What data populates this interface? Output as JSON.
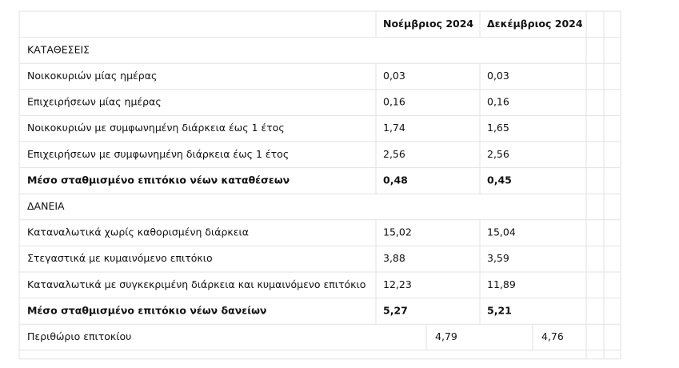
{
  "table": {
    "header": [
      "Νοέμβριος 2024",
      "Δεκέμβριος 2024"
    ],
    "sections": [
      {
        "title": "ΚΑΤΑΘΕΣΕΙΣ",
        "rows": [
          [
            "Νοικοκυριών μίας ημέρας",
            "0,03",
            "0,03"
          ],
          [
            "Επιχειρήσεων μίας ημέρας",
            "0,16",
            "0,16"
          ],
          [
            "Νοικοκυριών με συμφωνημένη διάρκεια έως 1 έτος",
            "1,74",
            "1,65"
          ],
          [
            "Επιχειρήσεων με συμφωνημένη διάρκεια έως 1 έτος",
            "2,56",
            "2,56"
          ]
        ],
        "average": [
          "Μέσο σταθμισμένο επιτόκιο νέων καταθέσεων",
          "0,48",
          "0,45"
        ]
      },
      {
        "title": "ΔΑΝΕΙΑ",
        "rows": [
          [
            "Καταναλωτικά χωρίς καθορισμένη διάρκεια",
            "15,02",
            "15,04"
          ],
          [
            "Στεγαστικά με κυμαινόμενο επιτόκιο",
            "3,88",
            "3,59"
          ],
          [
            "Καταναλωτικά με συγκεκριμένη διάρκεια και κυμαινόμενο επιτόκιο",
            "12,23",
            "11,89"
          ]
        ],
        "average": [
          "Μέσο σταθμισμένο επιτόκιο νέων δανείων",
          "5,27",
          "5,21"
        ]
      }
    ],
    "margin": [
      "Περιθώριο επιτοκίου",
      "4,79",
      "4,76"
    ]
  }
}
